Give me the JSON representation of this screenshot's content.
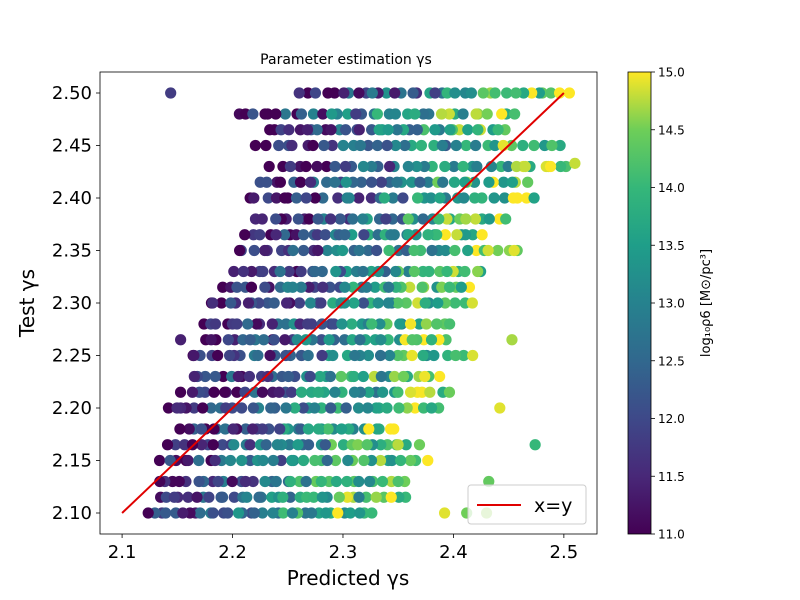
{
  "chart_data": {
    "type": "scatter",
    "title": "Parameter estimation γs",
    "xlabel": "Predicted γs",
    "ylabel": "Test γs",
    "xlim": [
      2.08,
      2.53
    ],
    "ylim": [
      2.08,
      2.52
    ],
    "xticks": [
      "2.1",
      "2.2",
      "2.3",
      "2.4",
      "2.5"
    ],
    "yticks": [
      "2.10",
      "2.15",
      "2.20",
      "2.25",
      "2.30",
      "2.35",
      "2.40",
      "2.45",
      "2.50"
    ],
    "grid": false,
    "legend": {
      "position": "lower-right",
      "entries": [
        {
          "label": "x=y",
          "color": "#e00000"
        }
      ]
    },
    "reference_line": {
      "label": "x=y",
      "from": [
        2.1,
        2.1
      ],
      "to": [
        2.5,
        2.5
      ],
      "color": "#e00000"
    },
    "colorbar": {
      "label": "log₁₀ρ6 [M⊙/pc³]",
      "label_tex": "log_{10} ρ6 [M⊙/pc³]",
      "range": [
        11.0,
        15.0
      ],
      "colormap": "viridis",
      "ticks": [
        "11.0",
        "11.5",
        "12.0",
        "12.5",
        "13.0",
        "13.5",
        "14.0",
        "14.5",
        "15.0"
      ]
    },
    "y_levels": [
      2.1,
      2.115,
      2.13,
      2.15,
      2.165,
      2.18,
      2.2,
      2.215,
      2.23,
      2.25,
      2.265,
      2.28,
      2.3,
      2.315,
      2.33,
      2.35,
      2.365,
      2.38,
      2.4,
      2.415,
      2.43,
      2.45,
      2.465,
      2.48,
      2.5
    ],
    "row_ranges": [
      [
        2.12,
        2.33
      ],
      [
        2.13,
        2.36
      ],
      [
        2.13,
        2.36
      ],
      [
        2.13,
        2.38
      ],
      [
        2.14,
        2.37
      ],
      [
        2.15,
        2.35
      ],
      [
        2.14,
        2.39
      ],
      [
        2.15,
        2.4
      ],
      [
        2.16,
        2.39
      ],
      [
        2.16,
        2.42
      ],
      [
        2.17,
        2.4
      ],
      [
        2.17,
        2.4
      ],
      [
        2.18,
        2.42
      ],
      [
        2.19,
        2.42
      ],
      [
        2.2,
        2.43
      ],
      [
        2.2,
        2.46
      ],
      [
        2.21,
        2.43
      ],
      [
        2.22,
        2.45
      ],
      [
        2.21,
        2.48
      ],
      [
        2.22,
        2.47
      ],
      [
        2.23,
        2.51
      ],
      [
        2.22,
        2.5
      ],
      [
        2.23,
        2.45
      ],
      [
        2.2,
        2.46
      ],
      [
        2.26,
        2.5
      ]
    ],
    "outliers": [
      {
        "x": 2.144,
        "y": 2.5,
        "c": 11.8
      },
      {
        "x": 2.51,
        "y": 2.433,
        "c": 14.8
      },
      {
        "x": 2.505,
        "y": 2.5,
        "c": 15.0
      },
      {
        "x": 2.455,
        "y": 2.35,
        "c": 14.9
      },
      {
        "x": 2.474,
        "y": 2.165,
        "c": 14.0
      },
      {
        "x": 2.442,
        "y": 2.2,
        "c": 14.9
      },
      {
        "x": 2.43,
        "y": 2.1,
        "c": 14.6
      },
      {
        "x": 2.432,
        "y": 2.13,
        "c": 14.4
      },
      {
        "x": 2.453,
        "y": 2.265,
        "c": 14.7
      },
      {
        "x": 2.465,
        "y": 2.43,
        "c": 14.8
      },
      {
        "x": 2.486,
        "y": 2.43,
        "c": 14.6
      },
      {
        "x": 2.392,
        "y": 2.1,
        "c": 14.9
      },
      {
        "x": 2.412,
        "y": 2.1,
        "c": 14.5
      },
      {
        "x": 2.182,
        "y": 2.3,
        "c": 11.6
      },
      {
        "x": 2.153,
        "y": 2.265,
        "c": 11.4
      },
      {
        "x": 2.165,
        "y": 2.25,
        "c": 11.3
      },
      {
        "x": 2.153,
        "y": 2.2,
        "c": 11.5
      }
    ]
  }
}
